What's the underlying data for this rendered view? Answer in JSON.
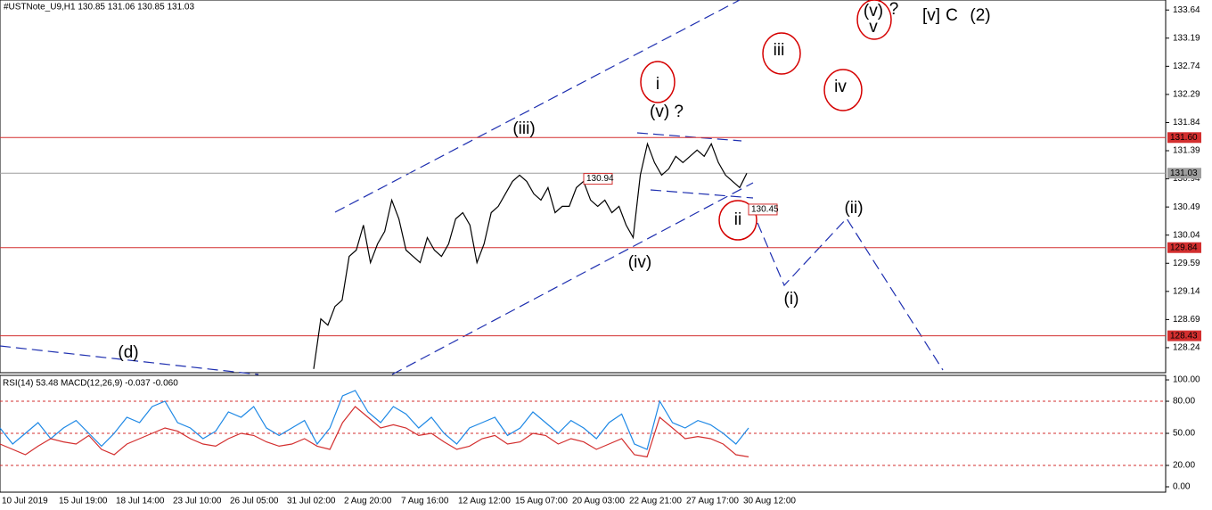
{
  "header": "#USTNote_U9,H1  130.85 131.06 130.85 131.03",
  "pane_header": "RSI(14) 53.48 MACD(12,26,9) -0.037 -0.060",
  "time_labels": [
    "10 Jul 2019",
    "15 Jul 19:00",
    "18 Jul 14:00",
    "23 Jul 10:00",
    "26 Jul 05:00",
    "31 Jul 02:00",
    "2 Aug 20:00",
    "7 Aug 16:00",
    "12 Aug 12:00",
    "15 Aug 07:00",
    "20 Aug 03:00",
    "22 Aug 21:00",
    "27 Aug 17:00",
    "30 Aug 12:00"
  ],
  "annotations": [
    {
      "text": "(iii)",
      "color": "#37474f"
    },
    {
      "text": "(v) ?",
      "color": "#37474f"
    },
    {
      "text": "i",
      "color": "#d81bd8"
    },
    {
      "text": "(iv)",
      "color": "#37474f"
    },
    {
      "text": "ii",
      "color": "#d81bd8"
    },
    {
      "text": "iii",
      "color": "#d81bd8"
    },
    {
      "text": "iv",
      "color": "#d81bd8"
    },
    {
      "text": "(v)",
      "color": "#37474f"
    },
    {
      "text": "?",
      "color": "#37474f"
    },
    {
      "text": "v",
      "color": "#d81bd8"
    },
    {
      "text": "[v]",
      "color": "#2e7d32"
    },
    {
      "text": "C",
      "color": "#e53935"
    },
    {
      "text": "(2)",
      "color": "#1e2fb0"
    },
    {
      "text": "(ii)",
      "color": "#37474f"
    },
    {
      "text": "(i)",
      "color": "#37474f"
    },
    {
      "text": "(d)",
      "color": "#37474f"
    }
  ],
  "price_tags": [
    {
      "value": 130.94,
      "label": "130.94"
    },
    {
      "value": 130.45,
      "label": "130.45"
    }
  ],
  "chart_data": [
    {
      "type": "line",
      "ylim": [
        127.84,
        133.8
      ],
      "yticks": [
        133.64,
        133.19,
        132.74,
        132.29,
        131.84,
        131.39,
        130.94,
        130.49,
        130.04,
        129.59,
        129.14,
        128.69,
        128.24
      ],
      "levels": [
        {
          "value": 131.6,
          "label": "131.60",
          "color": "#d32f2f"
        },
        {
          "value": 131.03,
          "color": "#9e9e9e"
        },
        {
          "value": 129.84,
          "color": "#d32f2f"
        },
        {
          "value": 128.43,
          "color": "#d32f2f"
        }
      ],
      "series": [
        {
          "name": "#USTNote_U9,H1",
          "color": "#000000",
          "values": [
            127.9,
            128.7,
            128.6,
            128.9,
            129.0,
            129.7,
            129.8,
            130.2,
            129.6,
            129.9,
            130.1,
            130.6,
            130.3,
            129.8,
            129.7,
            129.6,
            130.0,
            129.8,
            129.7,
            129.9,
            130.3,
            130.4,
            130.2,
            129.6,
            129.9,
            130.4,
            130.5,
            130.7,
            130.9,
            131.0,
            130.9,
            130.7,
            130.6,
            130.8,
            130.4,
            130.5,
            130.5,
            130.8,
            130.9,
            130.6,
            130.5,
            130.6,
            130.4,
            130.5,
            130.2,
            130.0,
            131.0,
            131.5,
            131.2,
            131.0,
            131.1,
            131.3,
            131.2,
            131.3,
            131.4,
            131.3,
            131.5,
            131.2,
            131.0,
            130.9,
            130.8,
            131.03
          ]
        }
      ]
    },
    {
      "type": "line",
      "ylim": [
        -5,
        104.2
      ],
      "yticks": [
        {
          "value": 100,
          "label": "100.00"
        },
        {
          "value": 80,
          "label": "80.00"
        },
        {
          "value": 50,
          "label": "50.00"
        },
        {
          "value": 20,
          "label": "20.00"
        },
        {
          "value": 0,
          "label": "0.00"
        }
      ],
      "levels": [
        {
          "value": 80,
          "color": "#d32f2f"
        },
        {
          "value": 50,
          "color": "#d32f2f"
        },
        {
          "value": 20,
          "color": "#d32f2f"
        }
      ],
      "series": [
        {
          "name": "RSI(14)",
          "color": "#1e88e5",
          "values": [
            55,
            40,
            50,
            60,
            45,
            55,
            62,
            50,
            38,
            50,
            65,
            60,
            75,
            80,
            60,
            55,
            45,
            52,
            70,
            65,
            75,
            55,
            48,
            55,
            62,
            40,
            55,
            85,
            90,
            70,
            60,
            75,
            68,
            55,
            65,
            50,
            40,
            55,
            60,
            65,
            48,
            55,
            70,
            60,
            50,
            62,
            55,
            45,
            60,
            68,
            40,
            35,
            80,
            60,
            55,
            62,
            58,
            50,
            40,
            55
          ]
        },
        {
          "name": "MACD(12,26,9)",
          "color": "#d32f2f",
          "values": [
            40,
            35,
            30,
            38,
            45,
            42,
            40,
            48,
            35,
            30,
            40,
            45,
            50,
            55,
            52,
            45,
            40,
            38,
            45,
            50,
            48,
            42,
            38,
            40,
            45,
            38,
            35,
            60,
            75,
            65,
            55,
            58,
            55,
            48,
            50,
            42,
            35,
            38,
            45,
            48,
            40,
            42,
            50,
            48,
            40,
            45,
            42,
            35,
            40,
            45,
            30,
            28,
            65,
            55,
            45,
            47,
            45,
            40,
            30,
            28
          ]
        }
      ]
    }
  ]
}
